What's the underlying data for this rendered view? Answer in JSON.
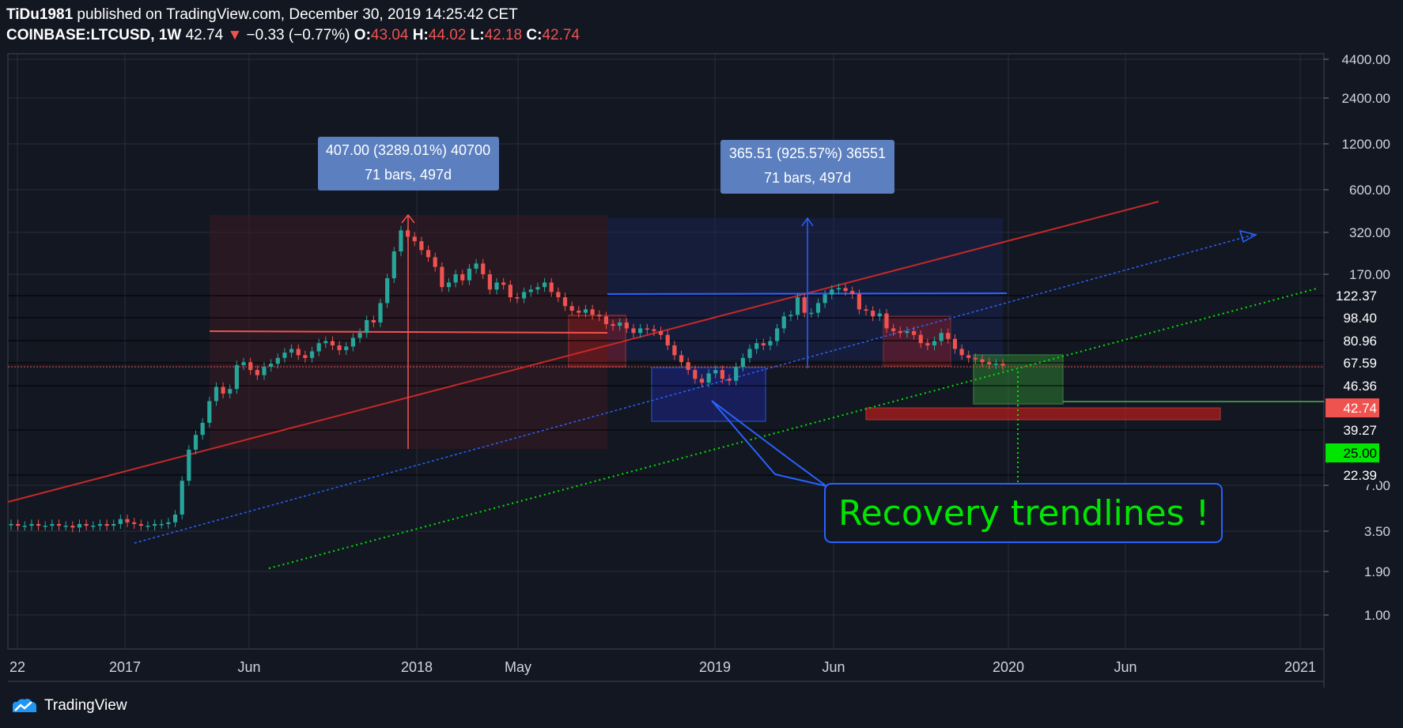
{
  "header": {
    "author": "TiDu1981",
    "published_text": "published on TradingView.com, December 30, 2019 14:25:42 CET",
    "symbol": "COINBASE:LTCUSD",
    "interval": "1W",
    "last": "42.74",
    "change": "−0.33 (−0.77%)",
    "o_label": "O:",
    "o_value": "43.04",
    "h_label": "H:",
    "h_value": "44.02",
    "l_label": "L:",
    "l_value": "42.18",
    "c_label": "C:",
    "c_value": "42.74"
  },
  "footer": {
    "brand": "TradingView",
    "logo_icon": "tradingview-cloud-icon"
  },
  "colors": {
    "background": "#131722",
    "bull": "#26a69a",
    "bear": "#ef5350",
    "trend_red": "#c62828",
    "trend_blue": "#2962ff",
    "trend_green": "#00e600",
    "last_price_bg": "#ef5350",
    "target_bg": "#00e600"
  },
  "chart_data": {
    "type": "candlestick",
    "scale": "log",
    "x_ticks": [
      "22",
      "2017",
      "Jun",
      "2018",
      "May",
      "2019",
      "Jun",
      "2020",
      "Jun",
      "2021"
    ],
    "y_ticks": [
      "4400.00",
      "2400.00",
      "1200.00",
      "600.00",
      "320.00",
      "170.00",
      "7.00",
      "3.50",
      "1.90",
      "1.00"
    ],
    "price_labels": [
      {
        "value": "122.37",
        "style": "plain"
      },
      {
        "value": "98.40",
        "style": "plain"
      },
      {
        "value": "80.96",
        "style": "plain"
      },
      {
        "value": "67.59",
        "style": "plain"
      },
      {
        "value": "46.36",
        "style": "plain"
      },
      {
        "value": "42.74",
        "style": "last"
      },
      {
        "value": "39.27",
        "style": "plain"
      },
      {
        "value": "25.00",
        "style": "target"
      },
      {
        "value": "22.39",
        "style": "plain"
      }
    ],
    "measure_boxes": [
      {
        "line1": "407.00 (3289.01%) 40700",
        "line2": "71 bars, 497d"
      },
      {
        "line1": "365.51 (925.57%) 36551",
        "line2": "71 bars, 497d"
      }
    ],
    "annotation": "Recovery trendlines !",
    "series_close": [
      3.9,
      3.8,
      3.8,
      3.9,
      3.8,
      3.8,
      3.9,
      3.8,
      3.8,
      3.7,
      3.9,
      3.8,
      3.8,
      3.9,
      3.8,
      3.9,
      4.2,
      4.0,
      3.9,
      3.8,
      3.8,
      3.9,
      3.9,
      4.0,
      4.5,
      7.5,
      12,
      15,
      18,
      25,
      31,
      28,
      30,
      43,
      45,
      40,
      37,
      42,
      44,
      48,
      52,
      55,
      50,
      48,
      53,
      60,
      62,
      58,
      54,
      57,
      65,
      70,
      85,
      82,
      110,
      160,
      240,
      330,
      300,
      280,
      245,
      220,
      190,
      140,
      150,
      170,
      155,
      185,
      200,
      170,
      135,
      150,
      145,
      120,
      118,
      130,
      135,
      140,
      150,
      130,
      120,
      105,
      98,
      95,
      100,
      92,
      90,
      80,
      78,
      82,
      75,
      70,
      75,
      74,
      72,
      68,
      58,
      50,
      45,
      40,
      35,
      33,
      38,
      40,
      35,
      34,
      42,
      48,
      55,
      60,
      58,
      62,
      75,
      90,
      92,
      120,
      95,
      95,
      110,
      125,
      135,
      138,
      132,
      126,
      100,
      98,
      90,
      94,
      75,
      72,
      70,
      72,
      68,
      60,
      58,
      62,
      70,
      64,
      55,
      50,
      48,
      47,
      45,
      43.6,
      44,
      42.74
    ],
    "annotation_lines": {
      "red_trend": "rising trendline",
      "blue_trend": "rising dotted trendline",
      "green_trend": "recovery dotted trendline"
    }
  }
}
